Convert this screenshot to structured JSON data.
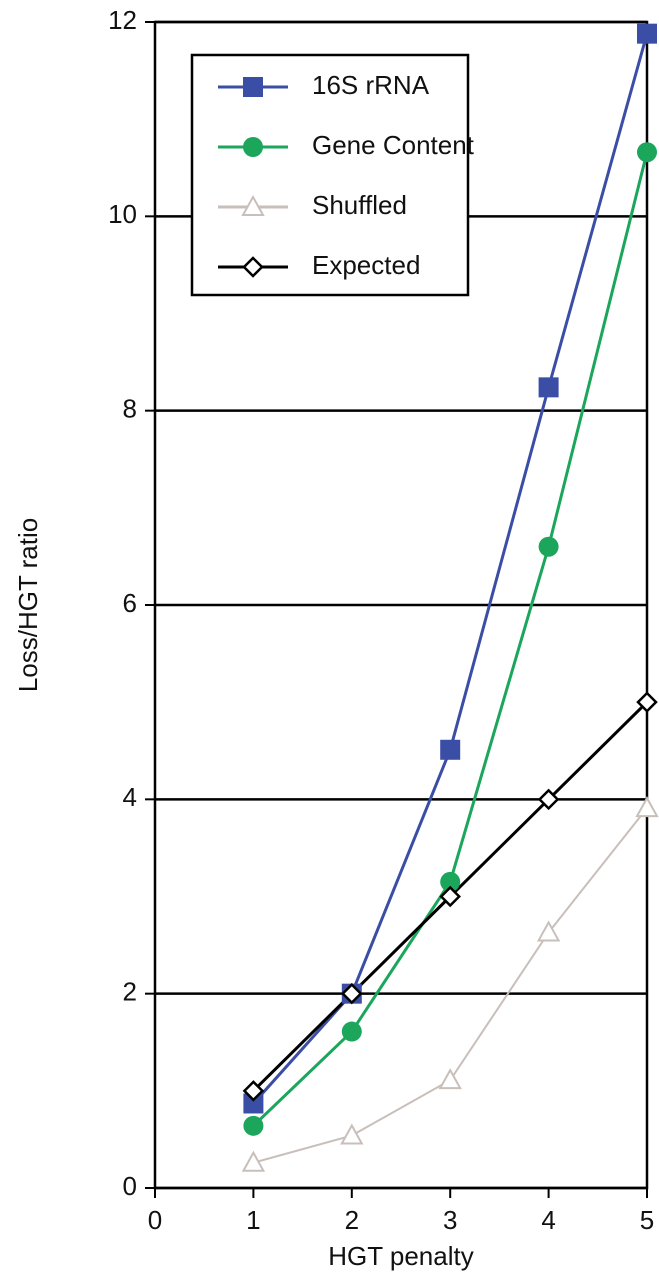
{
  "chart_data": {
    "type": "line",
    "x_label": "HGT penalty",
    "y_label": "Loss/HGT ratio",
    "x": [
      1,
      2,
      3,
      4,
      5
    ],
    "series": [
      {
        "name": "16S rRNA",
        "color": "#3b4ea6",
        "marker": "square",
        "values": [
          0.87,
          2.0,
          4.51,
          8.24,
          11.88
        ]
      },
      {
        "name": "Gene Content",
        "color": "#1ba65c",
        "marker": "circle",
        "values": [
          0.64,
          1.61,
          3.15,
          6.6,
          10.66
        ]
      },
      {
        "name": "Shuffled",
        "color": "#c9bfba",
        "marker": "triangle",
        "values": [
          0.26,
          0.54,
          1.11,
          2.63,
          3.91
        ]
      },
      {
        "name": "Expected",
        "color": "#000000",
        "marker": "diamond",
        "values": [
          1,
          2,
          3,
          4,
          5
        ]
      }
    ],
    "xlim": [
      0,
      5
    ],
    "xticks": [
      0,
      1,
      2,
      3,
      4,
      5
    ],
    "ylim": [
      0,
      12
    ],
    "yticks": [
      0,
      2,
      4,
      6,
      8,
      10,
      12
    ],
    "grid": true,
    "legend": "upper-left"
  }
}
